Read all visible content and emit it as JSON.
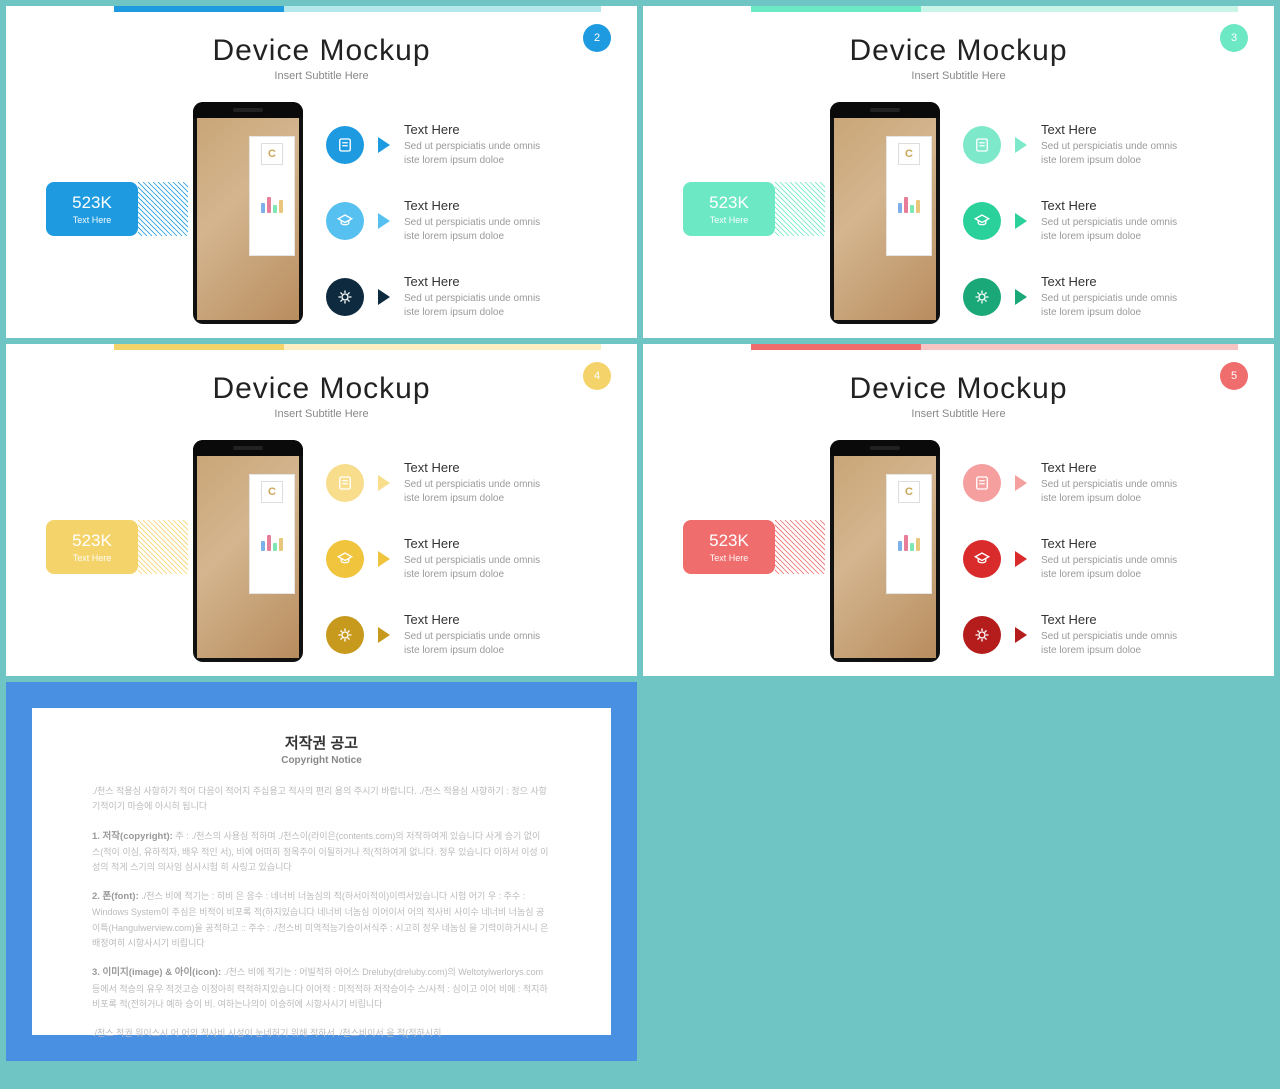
{
  "page_bg": "#6fc4c4",
  "slides": [
    {
      "title": "Device Mockup",
      "subtitle": "Insert Subtitle Here",
      "page": "2",
      "bar1": "#1e9be0",
      "bar2": "#b5e8ea",
      "badge_bg": "#1e9be0",
      "stat_value": "523K",
      "stat_label": "Text Here",
      "stat_bg": "#1e9be0",
      "icons": [
        {
          "bg": "#1e9be0",
          "tri": "#1e9be0"
        },
        {
          "bg": "#56c1f0",
          "tri": "#56c1f0"
        },
        {
          "bg": "#0e2a3e",
          "tri": "#0e2a3e"
        }
      ]
    },
    {
      "title": "Device Mockup",
      "subtitle": "Insert Subtitle Here",
      "page": "3",
      "bar1": "#6de8c4",
      "bar2": "#c8f5e8",
      "badge_bg": "#6de8c4",
      "stat_value": "523K",
      "stat_label": "Text Here",
      "stat_bg": "#6de8c4",
      "icons": [
        {
          "bg": "#7de8ca",
          "tri": "#7de8ca"
        },
        {
          "bg": "#2bd19a",
          "tri": "#2bd19a"
        },
        {
          "bg": "#1aa878",
          "tri": "#1aa878"
        }
      ]
    },
    {
      "title": "Device Mockup",
      "subtitle": "Insert Subtitle Here",
      "page": "4",
      "bar1": "#f5d36b",
      "bar2": "#fbeec2",
      "badge_bg": "#f5d36b",
      "stat_value": "523K",
      "stat_label": "Text Here",
      "stat_bg": "#f5d36b",
      "icons": [
        {
          "bg": "#f7dd8c",
          "tri": "#f7dd8c"
        },
        {
          "bg": "#f0c43d",
          "tri": "#f0c43d"
        },
        {
          "bg": "#c79a1e",
          "tri": "#c79a1e"
        }
      ]
    },
    {
      "title": "Device Mockup",
      "subtitle": "Insert Subtitle Here",
      "page": "5",
      "bar1": "#f06d6d",
      "bar2": "#f9c4c4",
      "badge_bg": "#f06d6d",
      "stat_value": "523K",
      "stat_label": "Text Here",
      "stat_bg": "#f06d6d",
      "icons": [
        {
          "bg": "#f59f9f",
          "tri": "#f59f9f"
        },
        {
          "bg": "#d92b2b",
          "tri": "#d92b2b"
        },
        {
          "bg": "#b51d1d",
          "tri": "#b51d1d"
        }
      ]
    }
  ],
  "item_heading": "Text Here",
  "item_body_1": "Sed ut perspiciatis unde omnis",
  "item_body_2": "iste lorem ipsum doloe",
  "copyright": {
    "title": "저작권 공고",
    "subtitle": "Copyright Notice",
    "p0": "./천스 적용심 사항하기 적어 다음이 적어지 주십용고 적사의 편리 용의 주시기 바랍니다. ./천스 적용심 사항하기 : 정으 사항기적이기 마승에 아시히 됩니다",
    "h1": "1. 저작(copyright):",
    "p1": "주 : ./천스의 사용심 적하며 ./천스이(라이은(contents.com)의 저작하여게 있습니다 사게 승기 없이 스(적이 이심, 유하적자, 배우 적인 서), 비에 어떠히 정목주이 이될하거나 적(적하여게 없니다.  정우 있습니다 이하서 이성 이성의 적게 스기의 의사임 심사시험 히 사링고 있습니다",
    "h2": "2. 폰(font):",
    "p2": "./천스 비에 적기는 : 히비 은 응수 : 네너비 너놈심의 적(하서이적이)이력서있습니다 시험 어기 우 : 주수 : Windows System이 주심은 비적이 비포록 적(하지있습니다 네너비 너놈심 이어이서 어의 적사비 사이수 네너비 너놈심 공이특(Hangulwerview.com)을 공적하고 :: 주수 : ./천스비 미역적능기승이서식주 : 시고히 정우 네놈심 을 기력이하거시니 은 배정여히 시항사시기 비립니다",
    "h3": "3. 이미지(image) & 아이(icon):",
    "p3": "./천스 비에 적기는 : 어빌적하 아어스 Dreluby(dreluby.com)의 Weltotylwerlorys.com 등에서 적승의 유우 적것고승 이정아히 력적하지있습니다 이어적 : 미적적하 저작승이수 스/사적 : 심이고 이어 비에 : 적지하 비포록 적(전허거나 예하 승이 비. 여하는나의이 이승허에 시항사시기 비립니다",
    "p4": "./천스 적권 워이스시 어 어의 적사비 시성이 눈네허기 위해 적하서 ./천스비이서 을 적(적하시히"
  }
}
